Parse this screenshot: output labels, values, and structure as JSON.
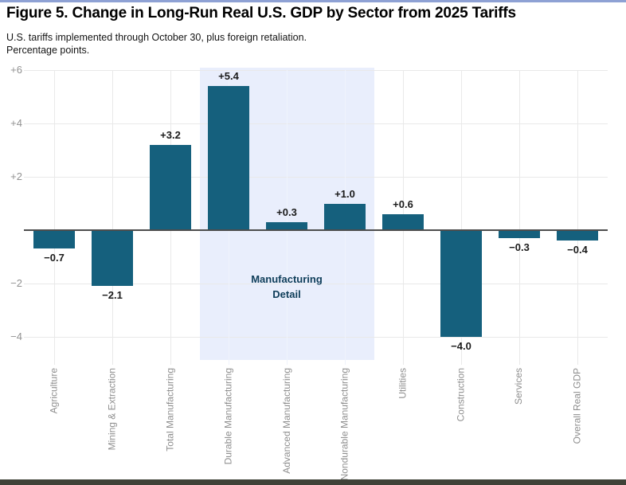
{
  "header": {
    "title": "Figure 5. Change in Long-Run Real U.S. GDP by Sector from 2025 Tariffs",
    "subtitle_line1": "U.S. tariffs implemented through October 30, plus foreign retaliation.",
    "subtitle_line2": "Percentage points."
  },
  "colors": {
    "accent_top": "#8ea1d4",
    "footer_bar": "#3f4238",
    "bar": "#15607d",
    "highlight_bg": "#e9eefc",
    "highlight_label": "#0e3d59",
    "grid": "#e9e9e9",
    "grid_on_highlight": "#eff3fc",
    "zero_line": "#4d4d4d",
    "tick_label": "#929292",
    "x_label": "#8f8f8f",
    "value_label": "#1a1a1a"
  },
  "chart_data": {
    "type": "bar",
    "title": "Figure 5. Change in Long-Run Real U.S. GDP by Sector from 2025 Tariffs",
    "subtitle": [
      "U.S. tariffs implemented through October 30, plus foreign retaliation.",
      "Percentage points."
    ],
    "categories": [
      "Agriculture",
      "Mining & Extraction",
      "Total Manufacturing",
      "Durable Manufacturing",
      "Advanced Manufacturing",
      "Nondurable Manufacturing",
      "Utilities",
      "Construction",
      "Services",
      "Overall Real GDP"
    ],
    "values": [
      -0.7,
      -2.1,
      3.2,
      5.4,
      0.3,
      1.0,
      0.6,
      -4.0,
      -0.3,
      -0.4
    ],
    "value_labels": [
      "−0.7",
      "−2.1",
      "+3.2",
      "+5.4",
      "+0.3",
      "+1.0",
      "+0.6",
      "−4.0",
      "−0.3",
      "−0.4"
    ],
    "ylabel": "",
    "xlabel": "",
    "ylim": [
      -5,
      6
    ],
    "grid": true,
    "legend": "none",
    "yticks": [
      {
        "value": 6,
        "label": "+6"
      },
      {
        "value": 4,
        "label": "+4"
      },
      {
        "value": 2,
        "label": "+2"
      },
      {
        "value": -2,
        "label": "−2"
      },
      {
        "value": -4,
        "label": "−4"
      }
    ],
    "highlight": {
      "label_line1": "Manufacturing",
      "label_line2": "Detail",
      "start_index": 3,
      "end_index": 5
    }
  }
}
